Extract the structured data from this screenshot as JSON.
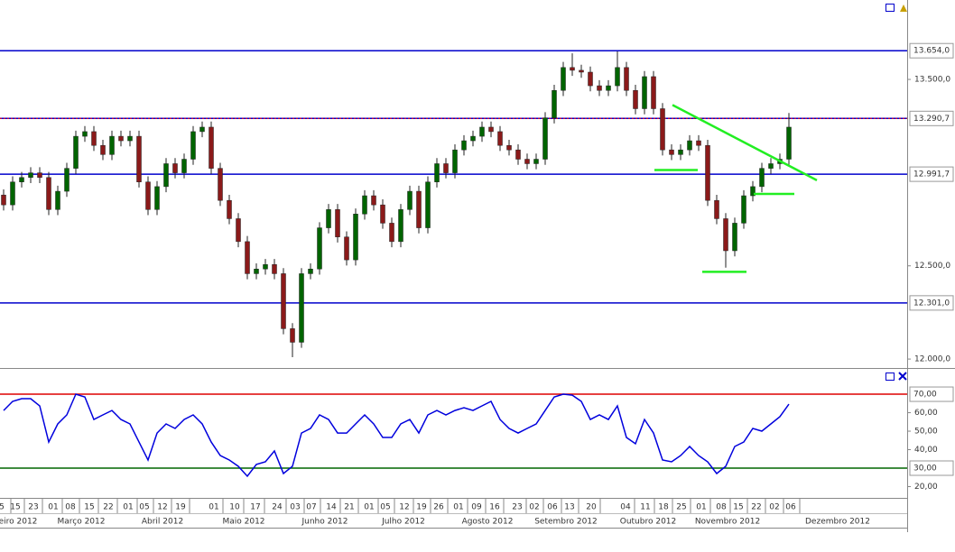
{
  "chart_data": [
    {
      "type": "candlestick",
      "up_color": "#006400",
      "down_color": "#8b1a1a",
      "xlim": [
        -0.4,
        100.1
      ],
      "ylim": [
        11952,
        13926
      ],
      "open": [
        12880,
        12827,
        12950,
        12974,
        12999,
        12974,
        12802,
        12900,
        13023,
        13195,
        13220,
        13146,
        13097,
        13195,
        13171,
        13195,
        12950,
        12802,
        12925,
        13048,
        12999,
        13072,
        13220,
        13244,
        13023,
        12851,
        12753,
        12630,
        12458,
        12483,
        12507,
        12458,
        12163,
        12090,
        12458,
        12483,
        12704,
        12802,
        12655,
        12532,
        12778,
        12876,
        12827,
        12729,
        12630,
        12802,
        12900,
        12704,
        12950,
        13048,
        12999,
        13122,
        13171,
        13195,
        13244,
        13220,
        13146,
        13122,
        13072,
        13048,
        13072,
        13294,
        13441,
        13564,
        13549,
        13539,
        13466,
        13441,
        13466,
        13564,
        13441,
        13343,
        13515,
        13343,
        13122,
        13097,
        13122,
        13171,
        13146,
        12851,
        12753,
        12581,
        12729,
        12876,
        12925,
        13023,
        13048,
        13072
      ],
      "high": [
        12910,
        12980,
        13004,
        13029,
        13029,
        13004,
        12930,
        13053,
        13225,
        13250,
        13250,
        13176,
        13225,
        13225,
        13225,
        13225,
        12980,
        12955,
        13078,
        13078,
        13102,
        13250,
        13274,
        13274,
        13053,
        12881,
        12783,
        12660,
        12513,
        12537,
        12537,
        12488,
        12193,
        12488,
        12513,
        12734,
        12832,
        12832,
        12685,
        12808,
        12906,
        12906,
        12857,
        12759,
        12832,
        12930,
        12930,
        12980,
        13078,
        13078,
        13152,
        13201,
        13225,
        13274,
        13274,
        13250,
        13176,
        13152,
        13102,
        13102,
        13324,
        13471,
        13594,
        13640,
        13579,
        13569,
        13496,
        13496,
        13650,
        13594,
        13471,
        13545,
        13545,
        13373,
        13152,
        13152,
        13201,
        13201,
        13176,
        12881,
        12783,
        12759,
        12906,
        12955,
        13053,
        13078,
        13102,
        13320
      ],
      "low": [
        12797,
        12797,
        12920,
        12944,
        12944,
        12772,
        12772,
        12870,
        12993,
        13165,
        13116,
        13067,
        13067,
        13141,
        13141,
        12920,
        12772,
        12772,
        12895,
        12969,
        12969,
        13042,
        13190,
        12993,
        12821,
        12723,
        12600,
        12428,
        12428,
        12453,
        12428,
        12133,
        12010,
        12060,
        12428,
        12453,
        12674,
        12625,
        12502,
        12502,
        12748,
        12797,
        12699,
        12600,
        12600,
        12772,
        12674,
        12674,
        12920,
        12969,
        12969,
        13092,
        13141,
        13165,
        13190,
        13116,
        13092,
        13042,
        13018,
        13018,
        13042,
        13264,
        13411,
        13519,
        13509,
        13436,
        13411,
        13411,
        13436,
        13411,
        13313,
        13313,
        13313,
        13092,
        13067,
        13067,
        13092,
        13116,
        12821,
        12723,
        12490,
        12551,
        12699,
        12846,
        12895,
        12993,
        13018,
        13042
      ],
      "close": [
        12827,
        12950,
        12974,
        12999,
        12974,
        12802,
        12900,
        13023,
        13195,
        13220,
        13146,
        13097,
        13195,
        13171,
        13195,
        12950,
        12802,
        12925,
        13048,
        12999,
        13072,
        13220,
        13244,
        13023,
        12851,
        12753,
        12630,
        12458,
        12483,
        12507,
        12458,
        12163,
        12090,
        12458,
        12483,
        12704,
        12802,
        12655,
        12532,
        12778,
        12876,
        12827,
        12729,
        12630,
        12802,
        12900,
        12704,
        12950,
        13048,
        12999,
        13122,
        13171,
        13195,
        13244,
        13220,
        13146,
        13122,
        13072,
        13048,
        13072,
        13294,
        13441,
        13564,
        13549,
        13539,
        13466,
        13441,
        13466,
        13564,
        13441,
        13343,
        13515,
        13343,
        13122,
        13097,
        13122,
        13171,
        13146,
        12851,
        12753,
        12581,
        12729,
        12876,
        12925,
        13023,
        13048,
        13072,
        13244
      ],
      "yticks": [
        {
          "value": 13500,
          "label": "13.500,0"
        },
        {
          "value": 12500,
          "label": "12.500,0"
        },
        {
          "value": 12000,
          "label": "12.000,0"
        }
      ],
      "levels": [
        {
          "value": 13654,
          "label": "13.654,0",
          "color": "#0000cc"
        },
        {
          "value": 13290.7,
          "label": "13.290,7",
          "color": "#0000cc"
        },
        {
          "value": 12991.7,
          "label": "12.991,7",
          "color": "#0000cc"
        },
        {
          "value": 12301,
          "label": "12.301,0",
          "color": "#0000cc"
        }
      ],
      "trendline_color": "#22ee22",
      "trendlines": [
        {
          "x": [
            74.1,
            90.1
          ],
          "y": [
            13363,
            12959
          ]
        },
        {
          "x": [
            72.1,
            76.9
          ],
          "y": [
            13014,
            13014
          ]
        },
        {
          "x": [
            83.1,
            87.6
          ],
          "y": [
            12886,
            12886
          ]
        },
        {
          "x": [
            77.4,
            82.3
          ],
          "y": [
            12468,
            12468
          ]
        }
      ]
    },
    {
      "type": "line",
      "xlim": [
        -0.4,
        100.1
      ],
      "ylim": [
        13.9,
        83.2
      ],
      "color": "#0000dd",
      "values": [
        61.2,
        66.1,
        67.6,
        67.6,
        63.7,
        44.1,
        53.9,
        58.8,
        70,
        68.5,
        56.3,
        58.8,
        61.2,
        56.3,
        53.9,
        44.1,
        34.4,
        49.0,
        53.9,
        51.5,
        56.3,
        58.8,
        53.9,
        44.1,
        36.8,
        34.4,
        31.0,
        25.6,
        32.0,
        33.4,
        39.3,
        27.1,
        31.0,
        49.0,
        51.5,
        58.8,
        56.3,
        49.0,
        49.0,
        53.9,
        58.8,
        53.9,
        46.6,
        46.6,
        53.9,
        56.3,
        49.0,
        58.8,
        61.2,
        58.8,
        61.2,
        62.7,
        61.2,
        63.7,
        66.1,
        56.3,
        51.5,
        49.0,
        51.5,
        53.9,
        61.2,
        68.5,
        70.0,
        69.5,
        66.1,
        56.3,
        58.8,
        56.3,
        63.7,
        46.6,
        43.2,
        56.3,
        49.0,
        34.4,
        33.4,
        36.8,
        41.7,
        36.8,
        33.4,
        27.1,
        31.0,
        41.7,
        44.1,
        51.5,
        50.0,
        53.9,
        57.8,
        64.6
      ],
      "yticks": [
        {
          "value": 60,
          "label": "60,00"
        },
        {
          "value": 50,
          "label": "50,00"
        },
        {
          "value": 40,
          "label": "40,00"
        },
        {
          "value": 20,
          "label": "20,00"
        }
      ],
      "levels": [
        {
          "value": 70,
          "label": "70,00",
          "color": "#dd0000"
        },
        {
          "value": 30,
          "label": "30,00",
          "color": "#006600"
        }
      ],
      "xticks": [
        {
          "value": -0.2,
          "label": "5"
        },
        {
          "value": 1.3,
          "label": "15"
        },
        {
          "value": 3.3,
          "label": "23"
        },
        {
          "value": 5.5,
          "label": "01"
        },
        {
          "value": 7.4,
          "label": "08"
        },
        {
          "value": 9.5,
          "label": "15"
        },
        {
          "value": 11.6,
          "label": "22"
        },
        {
          "value": 13.8,
          "label": "01"
        },
        {
          "value": 15.6,
          "label": "05"
        },
        {
          "value": 17.6,
          "label": "12"
        },
        {
          "value": 19.6,
          "label": "19"
        },
        {
          "value": 23.3,
          "label": "01"
        },
        {
          "value": 25.6,
          "label": "10"
        },
        {
          "value": 27.9,
          "label": "17"
        },
        {
          "value": 30.3,
          "label": "24"
        },
        {
          "value": 32.3,
          "label": "03"
        },
        {
          "value": 34.1,
          "label": "07"
        },
        {
          "value": 36.3,
          "label": "14"
        },
        {
          "value": 38.3,
          "label": "21"
        },
        {
          "value": 40.5,
          "label": "01"
        },
        {
          "value": 42.3,
          "label": "05"
        },
        {
          "value": 44.4,
          "label": "12"
        },
        {
          "value": 46.3,
          "label": "19"
        },
        {
          "value": 48.2,
          "label": "26"
        },
        {
          "value": 50.4,
          "label": "01"
        },
        {
          "value": 52.4,
          "label": "09"
        },
        {
          "value": 54.4,
          "label": "16"
        },
        {
          "value": 56.9,
          "label": "23"
        },
        {
          "value": 58.8,
          "label": "02"
        },
        {
          "value": 60.8,
          "label": "06"
        },
        {
          "value": 62.7,
          "label": "13"
        },
        {
          "value": 65.1,
          "label": "20"
        },
        {
          "value": 68.9,
          "label": "04"
        },
        {
          "value": 71.1,
          "label": "11"
        },
        {
          "value": 73.1,
          "label": "18"
        },
        {
          "value": 75.1,
          "label": "25"
        },
        {
          "value": 77.3,
          "label": "01"
        },
        {
          "value": 79.5,
          "label": "08"
        },
        {
          "value": 81.4,
          "label": "15"
        },
        {
          "value": 83.4,
          "label": "22"
        },
        {
          "value": 85.4,
          "label": "02"
        },
        {
          "value": 87.2,
          "label": "06"
        }
      ],
      "xmonths": [
        {
          "value": 1.6,
          "label": "eiro 2012"
        },
        {
          "value": 8.6,
          "label": "Março 2012"
        },
        {
          "value": 17.6,
          "label": "Abril 2012"
        },
        {
          "value": 26.6,
          "label": "Maio 2012"
        },
        {
          "value": 35.6,
          "label": "Junho 2012"
        },
        {
          "value": 44.3,
          "label": "Julho 2012"
        },
        {
          "value": 53.6,
          "label": "Agosto 2012"
        },
        {
          "value": 62.3,
          "label": "Setembro 2012"
        },
        {
          "value": 71.4,
          "label": "Outubro 2012"
        },
        {
          "value": 80.2,
          "label": "Novembro 2012"
        },
        {
          "value": 92.4,
          "label": "Dezembro 2012"
        }
      ]
    }
  ]
}
